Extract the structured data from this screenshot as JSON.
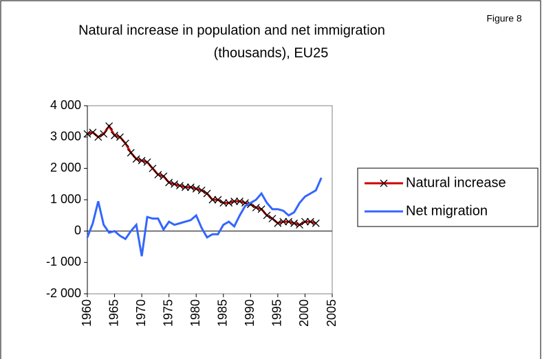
{
  "chart_data": {
    "type": "line",
    "title": [
      "Natural increase in population and net immigration",
      "(thousands), EU25"
    ],
    "annotation": "Figure 8",
    "x": [
      1960,
      1961,
      1962,
      1963,
      1964,
      1965,
      1966,
      1967,
      1968,
      1969,
      1970,
      1971,
      1972,
      1973,
      1974,
      1975,
      1976,
      1977,
      1978,
      1979,
      1980,
      1981,
      1982,
      1983,
      1984,
      1985,
      1986,
      1987,
      1988,
      1989,
      1990,
      1991,
      1992,
      1993,
      1994,
      1995,
      1996,
      1997,
      1998,
      1999,
      2000,
      2001,
      2002,
      2003
    ],
    "series": [
      {
        "name": "Natural increase",
        "color": "#cc0000",
        "marker_color": "#000000",
        "values": [
          3100,
          3150,
          3000,
          3100,
          3350,
          3050,
          3000,
          2800,
          2500,
          2300,
          2250,
          2200,
          2000,
          1800,
          1750,
          1550,
          1500,
          1450,
          1400,
          1400,
          1350,
          1300,
          1200,
          1000,
          1000,
          900,
          900,
          950,
          950,
          900,
          850,
          750,
          700,
          500,
          400,
          250,
          300,
          300,
          250,
          200,
          300,
          300,
          250,
          null
        ]
      },
      {
        "name": "Net migration",
        "color": "#3366ff",
        "values": [
          -200,
          250,
          950,
          200,
          -50,
          0,
          -150,
          -250,
          0,
          200,
          -800,
          450,
          400,
          400,
          50,
          300,
          200,
          250,
          300,
          350,
          500,
          100,
          -200,
          -100,
          -100,
          200,
          300,
          150,
          500,
          800,
          900,
          1000,
          1200,
          900,
          700,
          700,
          650,
          500,
          600,
          900,
          1100,
          1200,
          1300,
          1700
        ]
      }
    ],
    "xlim": [
      1960,
      2005
    ],
    "xticks": [
      1960,
      1965,
      1970,
      1975,
      1980,
      1985,
      1990,
      1995,
      2000,
      2005
    ],
    "ylim": [
      -2000,
      4000
    ],
    "yticks": [
      {
        "value": -2000,
        "label": "-2 000"
      },
      {
        "value": -1000,
        "label": "-1 000"
      },
      0,
      {
        "value": 1000,
        "label": "1 000"
      },
      {
        "value": 2000,
        "label": "2 000"
      },
      {
        "value": 3000,
        "label": "3 000"
      },
      {
        "value": 4000,
        "label": "4 000"
      }
    ],
    "legend": "right"
  }
}
